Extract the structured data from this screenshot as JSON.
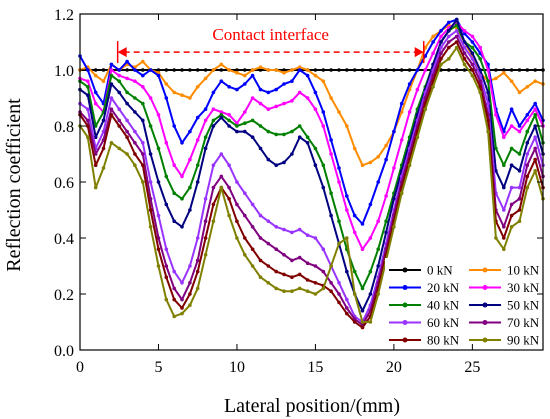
{
  "chart_data": {
    "type": "line",
    "xlabel": "Lateral position/(mm)",
    "ylabel": "Reflection coefficient",
    "xlim": [
      0,
      29.5
    ],
    "ylim": [
      0.0,
      1.2
    ],
    "x_ticks": [
      0,
      5,
      10,
      15,
      20,
      25
    ],
    "x_tick_labels": [
      "0",
      "5",
      "10",
      "15",
      "20",
      "25"
    ],
    "y_ticks": [
      0.0,
      0.2,
      0.4,
      0.6,
      0.8,
      1.0,
      1.2
    ],
    "y_tick_labels": [
      "0.0",
      "0.2",
      "0.4",
      "0.6",
      "0.8",
      "1.0",
      "1.2"
    ],
    "legend_position": "bottom-right",
    "annotation": {
      "text": "Contact interface",
      "x_start": 2.4,
      "x_end": 21.9,
      "y": 1.064,
      "color": "#ff0000"
    },
    "x": [
      0,
      0.5,
      1,
      1.5,
      2,
      2.5,
      3,
      3.5,
      4,
      4.5,
      5,
      5.5,
      6,
      6.5,
      7,
      7.5,
      8,
      8.5,
      9,
      9.5,
      10,
      10.5,
      11,
      11.5,
      12,
      12.5,
      13,
      13.5,
      14,
      14.5,
      15,
      15.5,
      16,
      16.5,
      17,
      17.5,
      18,
      18.5,
      19,
      19.5,
      20,
      20.5,
      21,
      21.5,
      22,
      22.5,
      23,
      23.5,
      24,
      24.5,
      25,
      25.5,
      26,
      26.5,
      27,
      27.5,
      28,
      28.5,
      29,
      29.5
    ],
    "series": [
      {
        "name": "0 kN",
        "color": "#000000",
        "values": [
          1.0,
          1.0,
          1.0,
          1.0,
          1.0,
          1.0,
          1.0,
          1.0,
          1.0,
          1.0,
          1.0,
          1.0,
          1.0,
          1.0,
          1.0,
          1.0,
          1.0,
          1.0,
          1.0,
          1.0,
          1.0,
          1.0,
          1.0,
          1.0,
          1.0,
          1.0,
          1.0,
          1.0,
          1.0,
          1.0,
          1.0,
          1.0,
          1.0,
          1.0,
          1.0,
          1.0,
          1.0,
          1.0,
          1.0,
          1.0,
          1.0,
          1.0,
          1.0,
          1.0,
          1.0,
          1.0,
          1.0,
          1.0,
          1.0,
          1.0,
          1.0,
          1.0,
          1.0,
          1.0,
          1.0,
          1.0,
          1.0,
          1.0,
          1.0,
          1.0
        ]
      },
      {
        "name": "10 kN",
        "color": "#ff8c00",
        "values": [
          1.0,
          1.01,
          0.98,
          0.96,
          1.02,
          1.0,
          1.02,
          1.01,
          1.03,
          1.0,
          0.99,
          0.95,
          0.92,
          0.91,
          0.9,
          0.94,
          0.97,
          1.0,
          1.02,
          1.0,
          0.99,
          0.98,
          1.0,
          1.01,
          1.0,
          1.0,
          0.99,
          1.0,
          1.01,
          1.0,
          0.98,
          0.96,
          0.9,
          0.85,
          0.8,
          0.72,
          0.66,
          0.67,
          0.69,
          0.73,
          0.78,
          0.85,
          0.93,
          1.0,
          1.08,
          1.12,
          1.14,
          1.16,
          1.15,
          1.1,
          1.05,
          0.99,
          0.96,
          0.97,
          0.99,
          0.96,
          0.92,
          0.94,
          0.96,
          0.95
        ]
      },
      {
        "name": "20 kN",
        "color": "#0000ff",
        "values": [
          1.05,
          1.0,
          0.92,
          0.88,
          1.02,
          1.0,
          1.03,
          1.0,
          0.98,
          1.0,
          0.98,
          0.9,
          0.8,
          0.74,
          0.78,
          0.83,
          0.86,
          0.92,
          0.96,
          0.94,
          0.93,
          0.95,
          0.98,
          0.93,
          0.92,
          0.93,
          0.95,
          0.96,
          1.0,
          0.98,
          0.92,
          0.85,
          0.75,
          0.65,
          0.55,
          0.48,
          0.45,
          0.52,
          0.6,
          0.68,
          0.78,
          0.88,
          0.95,
          1.0,
          1.05,
          1.1,
          1.14,
          1.17,
          1.18,
          1.13,
          1.1,
          1.06,
          1.02,
          0.86,
          0.78,
          0.86,
          0.8,
          0.84,
          0.88,
          0.82
        ]
      },
      {
        "name": "30 kN",
        "color": "#ff00ff",
        "values": [
          0.97,
          0.96,
          0.88,
          0.85,
          1.0,
          0.98,
          0.97,
          0.96,
          0.94,
          0.9,
          0.84,
          0.74,
          0.66,
          0.62,
          0.68,
          0.75,
          0.82,
          0.86,
          0.85,
          0.84,
          0.81,
          0.85,
          0.9,
          0.88,
          0.86,
          0.87,
          0.88,
          0.89,
          0.92,
          0.9,
          0.86,
          0.8,
          0.7,
          0.6,
          0.5,
          0.42,
          0.36,
          0.4,
          0.46,
          0.55,
          0.65,
          0.75,
          0.85,
          0.93,
          1.0,
          1.06,
          1.12,
          1.15,
          1.17,
          1.14,
          1.12,
          1.08,
          1.0,
          0.84,
          0.76,
          0.8,
          0.78,
          0.82,
          0.86,
          0.8
        ]
      },
      {
        "name": "40 kN",
        "color": "#008000",
        "values": [
          0.96,
          0.94,
          0.8,
          0.85,
          0.98,
          0.96,
          0.92,
          0.9,
          0.88,
          0.8,
          0.72,
          0.62,
          0.56,
          0.54,
          0.58,
          0.66,
          0.76,
          0.82,
          0.84,
          0.82,
          0.8,
          0.81,
          0.82,
          0.8,
          0.78,
          0.77,
          0.77,
          0.78,
          0.8,
          0.76,
          0.72,
          0.66,
          0.56,
          0.46,
          0.36,
          0.28,
          0.22,
          0.28,
          0.36,
          0.46,
          0.56,
          0.66,
          0.76,
          0.86,
          0.94,
          1.02,
          1.1,
          1.14,
          1.16,
          1.1,
          1.08,
          1.04,
          0.96,
          0.72,
          0.66,
          0.72,
          0.7,
          0.78,
          0.84,
          0.74
        ]
      },
      {
        "name": "50 kN",
        "color": "#000080",
        "values": [
          0.93,
          0.91,
          0.76,
          0.82,
          0.95,
          0.92,
          0.88,
          0.85,
          0.82,
          0.7,
          0.6,
          0.52,
          0.46,
          0.44,
          0.5,
          0.6,
          0.72,
          0.8,
          0.83,
          0.8,
          0.78,
          0.78,
          0.76,
          0.72,
          0.68,
          0.66,
          0.67,
          0.7,
          0.76,
          0.74,
          0.66,
          0.58,
          0.48,
          0.38,
          0.28,
          0.2,
          0.14,
          0.2,
          0.3,
          0.42,
          0.54,
          0.64,
          0.74,
          0.84,
          0.93,
          1.02,
          1.1,
          1.14,
          1.18,
          1.1,
          1.06,
          1.0,
          0.92,
          0.64,
          0.58,
          0.66,
          0.64,
          0.74,
          0.8,
          0.7
        ]
      },
      {
        "name": "60 kN",
        "color": "#9933ff",
        "values": [
          0.88,
          0.86,
          0.72,
          0.78,
          0.9,
          0.86,
          0.82,
          0.78,
          0.74,
          0.6,
          0.48,
          0.36,
          0.28,
          0.24,
          0.3,
          0.4,
          0.54,
          0.66,
          0.7,
          0.66,
          0.6,
          0.56,
          0.52,
          0.48,
          0.46,
          0.44,
          0.43,
          0.42,
          0.43,
          0.41,
          0.4,
          0.36,
          0.3,
          0.24,
          0.18,
          0.12,
          0.1,
          0.16,
          0.26,
          0.38,
          0.5,
          0.62,
          0.72,
          0.82,
          0.92,
          1.0,
          1.08,
          1.12,
          1.14,
          1.08,
          1.04,
          0.98,
          0.88,
          0.56,
          0.5,
          0.58,
          0.58,
          0.7,
          0.76,
          0.66
        ]
      },
      {
        "name": "70 kN",
        "color": "#800080",
        "values": [
          0.85,
          0.82,
          0.7,
          0.75,
          0.86,
          0.82,
          0.78,
          0.74,
          0.7,
          0.54,
          0.4,
          0.3,
          0.22,
          0.18,
          0.24,
          0.32,
          0.46,
          0.58,
          0.62,
          0.58,
          0.52,
          0.48,
          0.44,
          0.4,
          0.38,
          0.36,
          0.34,
          0.32,
          0.33,
          0.31,
          0.3,
          0.28,
          0.24,
          0.2,
          0.15,
          0.11,
          0.09,
          0.14,
          0.24,
          0.36,
          0.48,
          0.6,
          0.7,
          0.8,
          0.9,
          0.98,
          1.06,
          1.1,
          1.12,
          1.06,
          1.02,
          0.96,
          0.84,
          0.5,
          0.44,
          0.52,
          0.54,
          0.66,
          0.72,
          0.62
        ]
      },
      {
        "name": "80 kN",
        "color": "#800000",
        "values": [
          0.84,
          0.8,
          0.66,
          0.72,
          0.84,
          0.8,
          0.76,
          0.7,
          0.66,
          0.5,
          0.36,
          0.26,
          0.18,
          0.15,
          0.2,
          0.28,
          0.4,
          0.52,
          0.58,
          0.54,
          0.46,
          0.4,
          0.36,
          0.32,
          0.3,
          0.28,
          0.27,
          0.26,
          0.27,
          0.25,
          0.24,
          0.23,
          0.21,
          0.17,
          0.13,
          0.1,
          0.08,
          0.12,
          0.22,
          0.34,
          0.46,
          0.58,
          0.68,
          0.78,
          0.88,
          0.96,
          1.04,
          1.08,
          1.1,
          1.04,
          1.0,
          0.94,
          0.82,
          0.46,
          0.4,
          0.48,
          0.5,
          0.62,
          0.68,
          0.58
        ]
      },
      {
        "name": "90 kN",
        "color": "#808000",
        "values": [
          0.8,
          0.76,
          0.58,
          0.65,
          0.74,
          0.72,
          0.7,
          0.66,
          0.6,
          0.44,
          0.3,
          0.18,
          0.12,
          0.13,
          0.16,
          0.22,
          0.34,
          0.46,
          0.58,
          0.48,
          0.4,
          0.34,
          0.3,
          0.26,
          0.24,
          0.22,
          0.21,
          0.21,
          0.22,
          0.21,
          0.2,
          0.22,
          0.3,
          0.38,
          0.4,
          0.2,
          0.1,
          0.1,
          0.2,
          0.32,
          0.44,
          0.56,
          0.66,
          0.76,
          0.86,
          0.94,
          1.02,
          1.04,
          1.08,
          1.02,
          0.98,
          0.92,
          0.78,
          0.4,
          0.36,
          0.44,
          0.46,
          0.58,
          0.64,
          0.54
        ]
      }
    ]
  }
}
